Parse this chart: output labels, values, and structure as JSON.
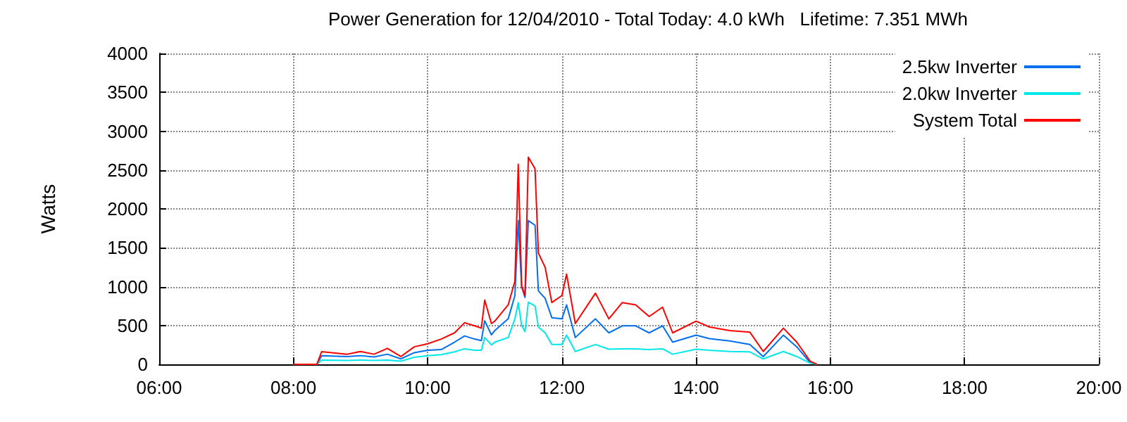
{
  "chart_data": {
    "type": "line",
    "title": "Power Generation for 12/04/2010 - Total Today: 4.0 kWh   Lifetime: 7.351 MWh",
    "ylabel": "Watts",
    "x": [
      8.0,
      8.35,
      8.42,
      8.8,
      9.0,
      9.2,
      9.4,
      9.6,
      9.8,
      10.0,
      10.2,
      10.4,
      10.55,
      10.7,
      10.8,
      10.85,
      10.95,
      11.0,
      11.2,
      11.3,
      11.35,
      11.4,
      11.45,
      11.5,
      11.6,
      11.65,
      11.75,
      11.85,
      12.0,
      12.07,
      12.2,
      12.5,
      12.7,
      12.9,
      13.1,
      13.3,
      13.5,
      13.65,
      14.0,
      14.2,
      14.5,
      14.8,
      15.0,
      15.3,
      15.5,
      15.7,
      15.8
    ],
    "series": [
      {
        "name": "2.5kw Inverter",
        "color": "#0070f0",
        "values": [
          0,
          0,
          110,
          100,
          112,
          95,
          130,
          70,
          150,
          180,
          190,
          285,
          365,
          325,
          305,
          560,
          380,
          435,
          585,
          885,
          1850,
          1000,
          860,
          1850,
          1790,
          945,
          850,
          600,
          585,
          765,
          345,
          585,
          405,
          495,
          495,
          405,
          495,
          285,
          375,
          330,
          300,
          255,
          100,
          375,
          225,
          20,
          0
        ]
      },
      {
        "name": "2.0kw Inverter",
        "color": "#00e8e8",
        "values": [
          0,
          0,
          55,
          50,
          55,
          50,
          55,
          40,
          90,
          110,
          125,
          160,
          200,
          180,
          180,
          345,
          250,
          285,
          345,
          585,
          795,
          500,
          420,
          800,
          750,
          480,
          405,
          255,
          255,
          375,
          165,
          255,
          195,
          200,
          200,
          190,
          200,
          130,
          195,
          180,
          165,
          160,
          70,
          165,
          100,
          15,
          0
        ]
      },
      {
        "name": "System Total",
        "color": "#ff0000",
        "values": [
          0,
          0,
          163,
          130,
          165,
          130,
          205,
          100,
          225,
          265,
          325,
          405,
          535,
          495,
          465,
          825,
          525,
          555,
          765,
          1070,
          2575,
          1010,
          885,
          2665,
          2515,
          1430,
          1250,
          795,
          885,
          1160,
          525,
          915,
          585,
          795,
          765,
          615,
          735,
          405,
          555,
          480,
          435,
          415,
          165,
          465,
          285,
          40,
          0
        ]
      }
    ],
    "xlim": [
      6,
      20
    ],
    "xticks": [
      {
        "value": 6,
        "label": "06:00"
      },
      {
        "value": 8,
        "label": "08:00"
      },
      {
        "value": 10,
        "label": "10:00"
      },
      {
        "value": 12,
        "label": "12:00"
      },
      {
        "value": 14,
        "label": "14:00"
      },
      {
        "value": 16,
        "label": "16:00"
      },
      {
        "value": 18,
        "label": "18:00"
      },
      {
        "value": 20,
        "label": "20:00"
      }
    ],
    "ylim": [
      0,
      4000
    ],
    "yticks": [
      0,
      500,
      1000,
      1500,
      2000,
      2500,
      3000,
      3500,
      4000
    ],
    "grid": true,
    "legend": "top right"
  }
}
